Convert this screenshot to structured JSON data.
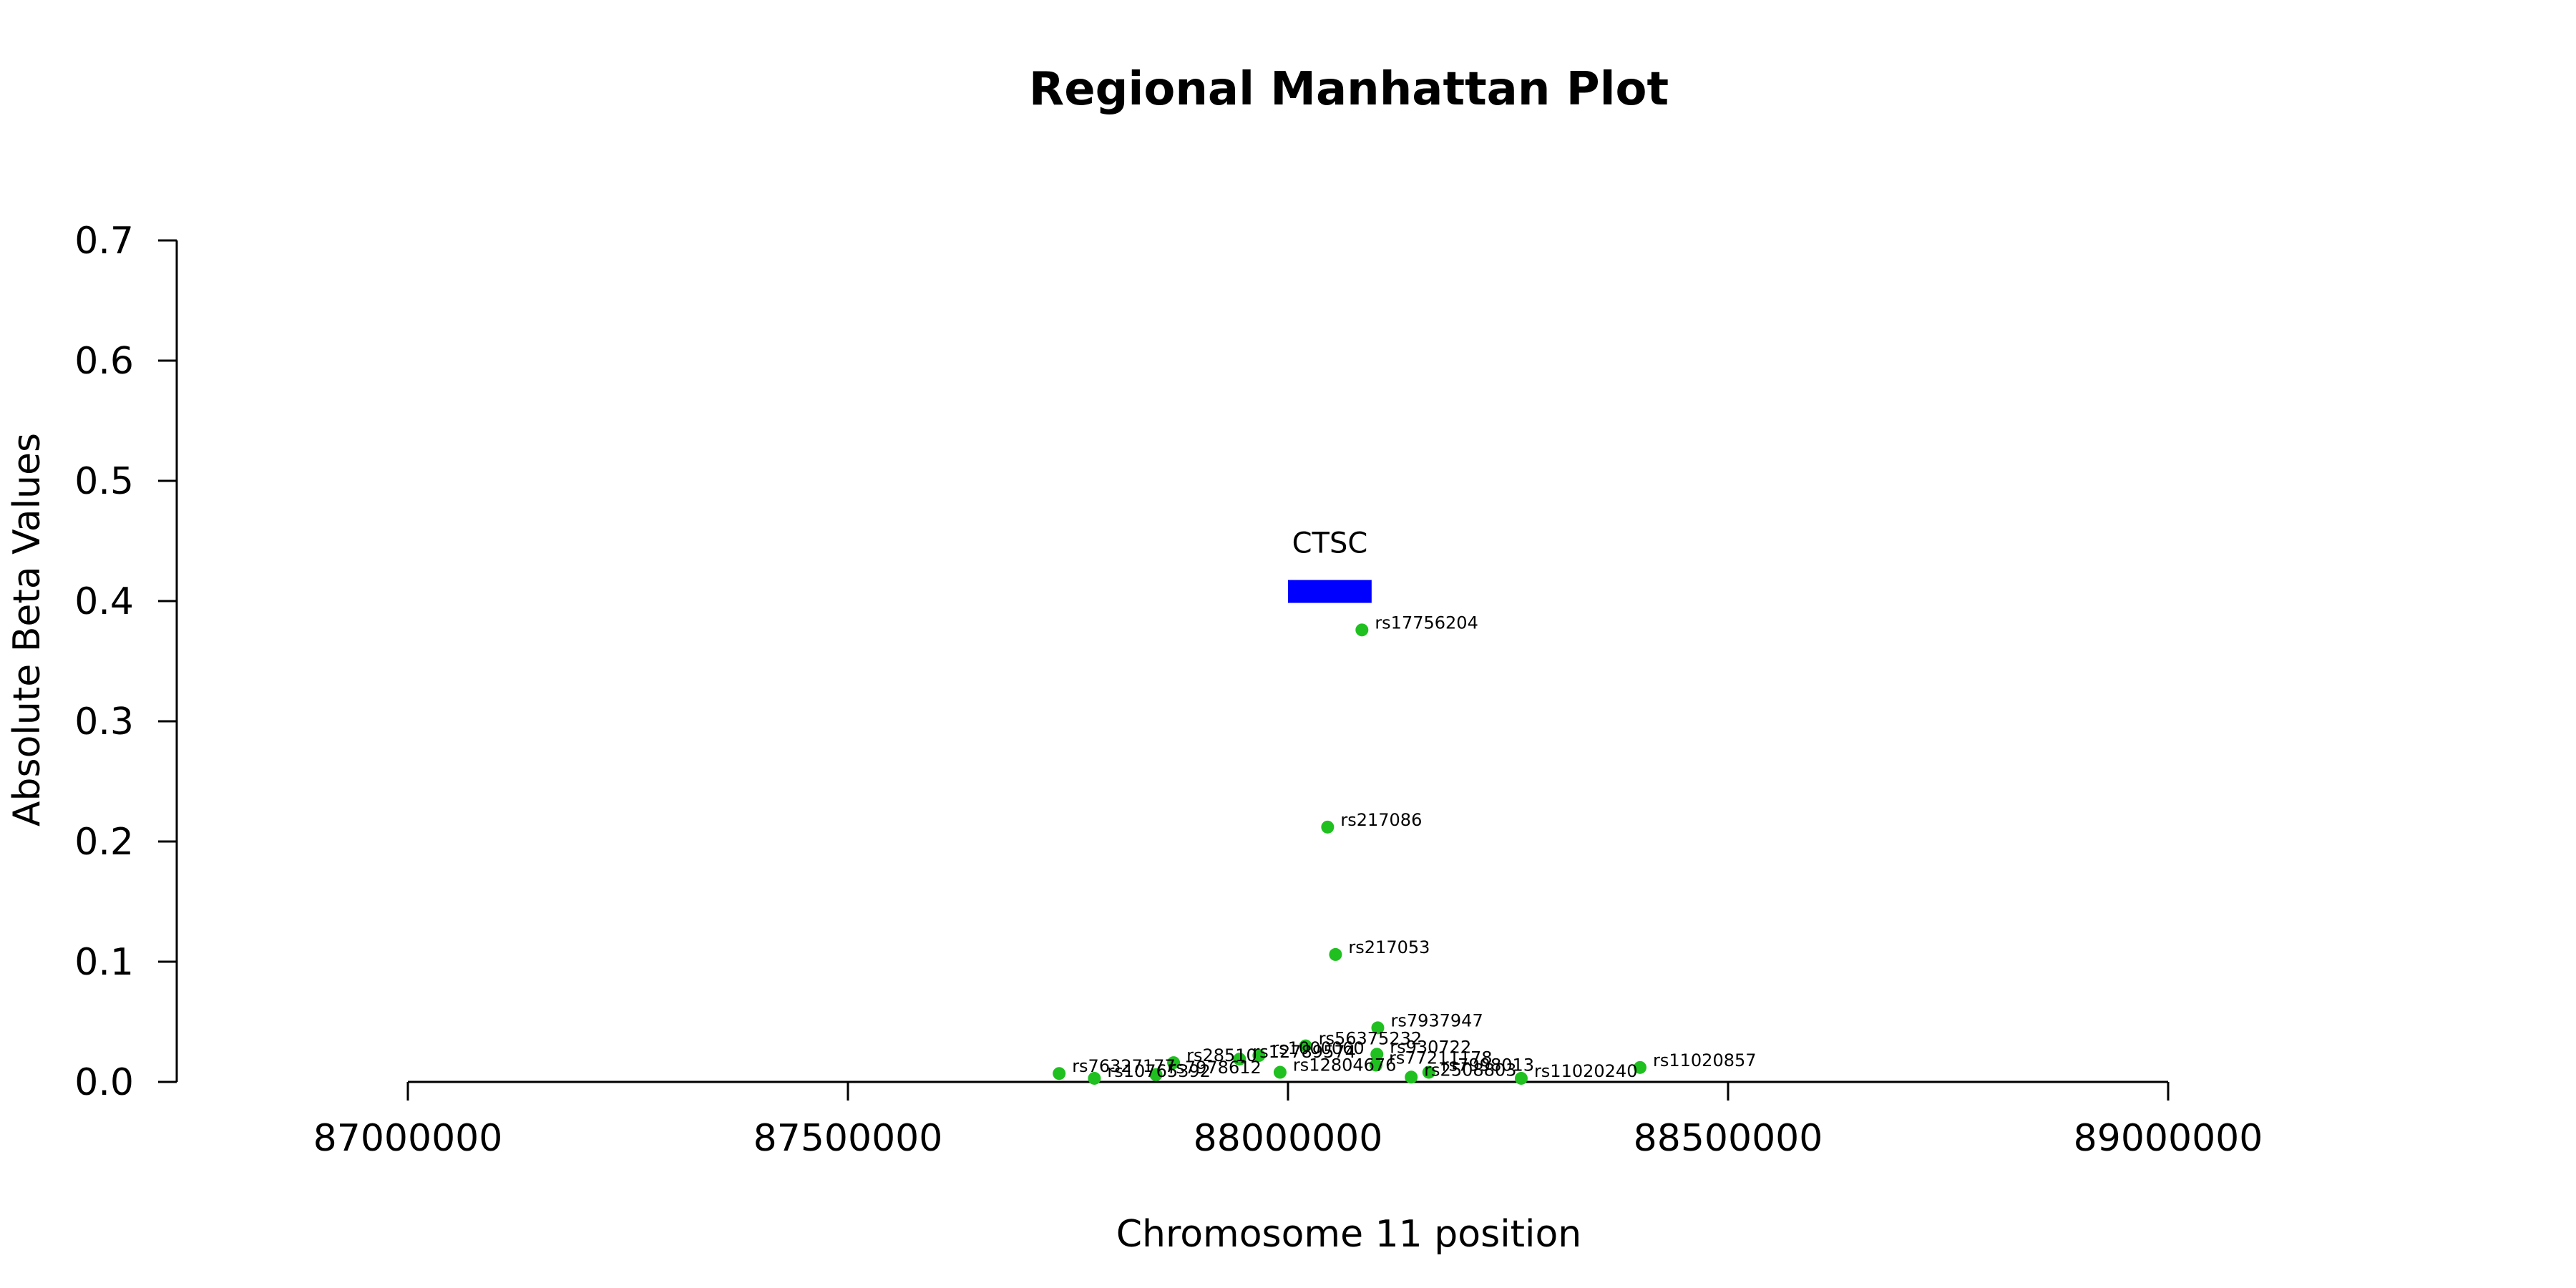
{
  "chart_data": {
    "type": "scatter",
    "title": "Regional Manhattan Plot",
    "xlabel": "Chromosome 11 position",
    "ylabel": "Absolute Beta Values",
    "xlim": [
      86740000,
      89240000
    ],
    "ylim": [
      0,
      0.7
    ],
    "xticks": [
      87000000,
      87500000,
      88000000,
      88500000,
      89000000
    ],
    "xtick_labels": [
      "87000000",
      "87500000",
      "88000000",
      "88500000",
      "89000000"
    ],
    "yticks": [
      0,
      0.1,
      0.2,
      0.3,
      0.4,
      0.5,
      0.6,
      0.7
    ],
    "ytick_labels": [
      "0.0",
      "0.1",
      "0.2",
      "0.3",
      "0.4",
      "0.5",
      "0.6",
      "0.7"
    ],
    "grid": false,
    "point_color": "#1fc01f",
    "gene_color": "#0000ff",
    "genes": [
      {
        "name": "CTSC",
        "start": 88000000,
        "end": 88095000,
        "y": 0.408
      }
    ],
    "points": [
      {
        "label": "rs17756204",
        "x": 88084000,
        "y": 0.376
      },
      {
        "label": "rs217086",
        "x": 88045000,
        "y": 0.212
      },
      {
        "label": "rs217053",
        "x": 88054000,
        "y": 0.106
      },
      {
        "label": "rs7937947",
        "x": 88102000,
        "y": 0.045
      },
      {
        "label": "rs56375232",
        "x": 88020000,
        "y": 0.03
      },
      {
        "label": "rs930722",
        "x": 88101000,
        "y": 0.023
      },
      {
        "label": "rs1000060",
        "x": 87967000,
        "y": 0.022
      },
      {
        "label": "rs12789574",
        "x": 87945000,
        "y": 0.019
      },
      {
        "label": "rs28510",
        "x": 87870000,
        "y": 0.016
      },
      {
        "label": "rs77211178",
        "x": 88100000,
        "y": 0.014
      },
      {
        "label": "rs11020857",
        "x": 88400000,
        "y": 0.012
      },
      {
        "label": "rs7998013",
        "x": 88160000,
        "y": 0.008
      },
      {
        "label": "rs12804676",
        "x": 87991000,
        "y": 0.008
      },
      {
        "label": "rs76327177",
        "x": 87740000,
        "y": 0.007
      },
      {
        "label": "rs7978612",
        "x": 87850000,
        "y": 0.006
      },
      {
        "label": "rs2508803",
        "x": 88140000,
        "y": 0.004
      },
      {
        "label": "rs11020240",
        "x": 88265000,
        "y": 0.003
      },
      {
        "label": "rs10765392",
        "x": 87780000,
        "y": 0.003
      }
    ]
  }
}
